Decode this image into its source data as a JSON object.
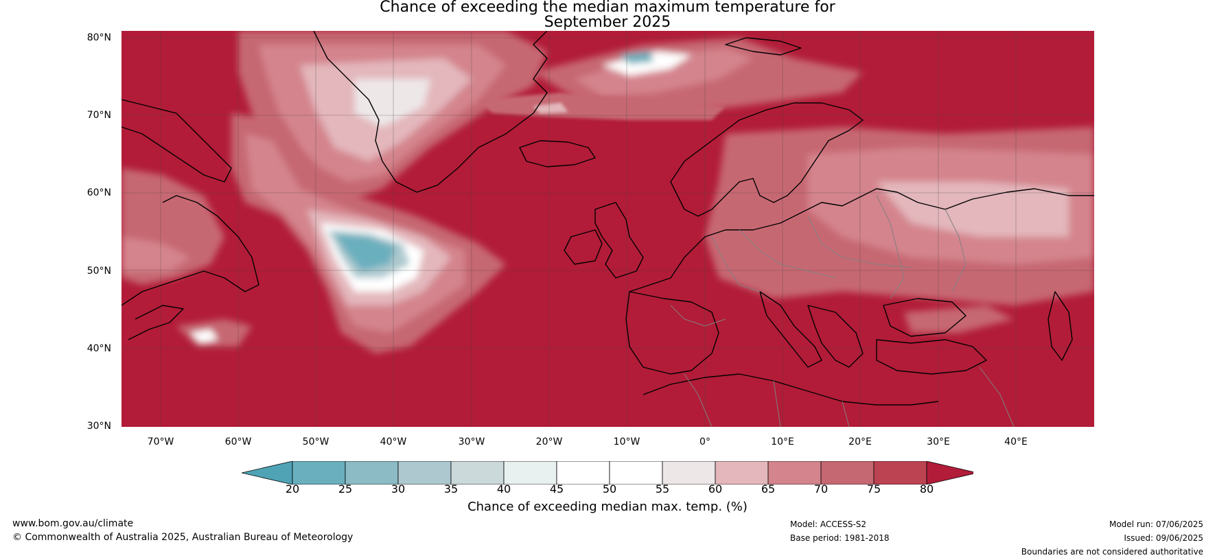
{
  "title": {
    "line1": "Chance of exceeding the median maximum temperature for",
    "line2": "September 2025"
  },
  "map": {
    "latitude_labels": [
      "80°N",
      "70°N",
      "60°N",
      "50°N",
      "40°N",
      "30°N"
    ],
    "longitude_labels": [
      "70°W",
      "60°W",
      "50°W",
      "40°W",
      "30°W",
      "20°W",
      "10°W",
      "0°",
      "10°E",
      "20°E",
      "30°E",
      "40°E"
    ],
    "extent": {
      "lon_min": -75,
      "lon_max": 50,
      "lat_min": 30,
      "lat_max": 81
    }
  },
  "colorbar": {
    "ticks": [
      "20",
      "25",
      "30",
      "35",
      "40",
      "45",
      "50",
      "55",
      "60",
      "65",
      "70",
      "75",
      "80"
    ],
    "colors": [
      "#4fa3b5",
      "#6aafbd",
      "#8cbbc6",
      "#adc9cf",
      "#cbd9db",
      "#e8f0f0",
      "#ffffff",
      "#ffffff",
      "#ede7e8",
      "#e3b7bc",
      "#d4848d",
      "#c66872",
      "#bc4352",
      "#b21c38"
    ],
    "label": "Chance of exceeding median max. temp. (%)"
  },
  "colors": {
    "warm_high": "#b21c38",
    "warm_mid": "#c9545f",
    "warm_low": "#d68590",
    "neutral": "#eddfe1",
    "cool": "#6aafbd",
    "coastline": "#000000",
    "border": "#808080"
  },
  "footer": {
    "website": "www.bom.gov.au/climate",
    "copyright": "© Commonwealth of Australia 2025, Australian Bureau of Meteorology",
    "model": "Model: ACCESS-S2",
    "base_period": "Base period: 1981-2018",
    "model_run": "Model run: 07/06/2025",
    "issued": "Issued: 09/06/2025",
    "disclaimer": "Boundaries are not considered authoritative"
  }
}
